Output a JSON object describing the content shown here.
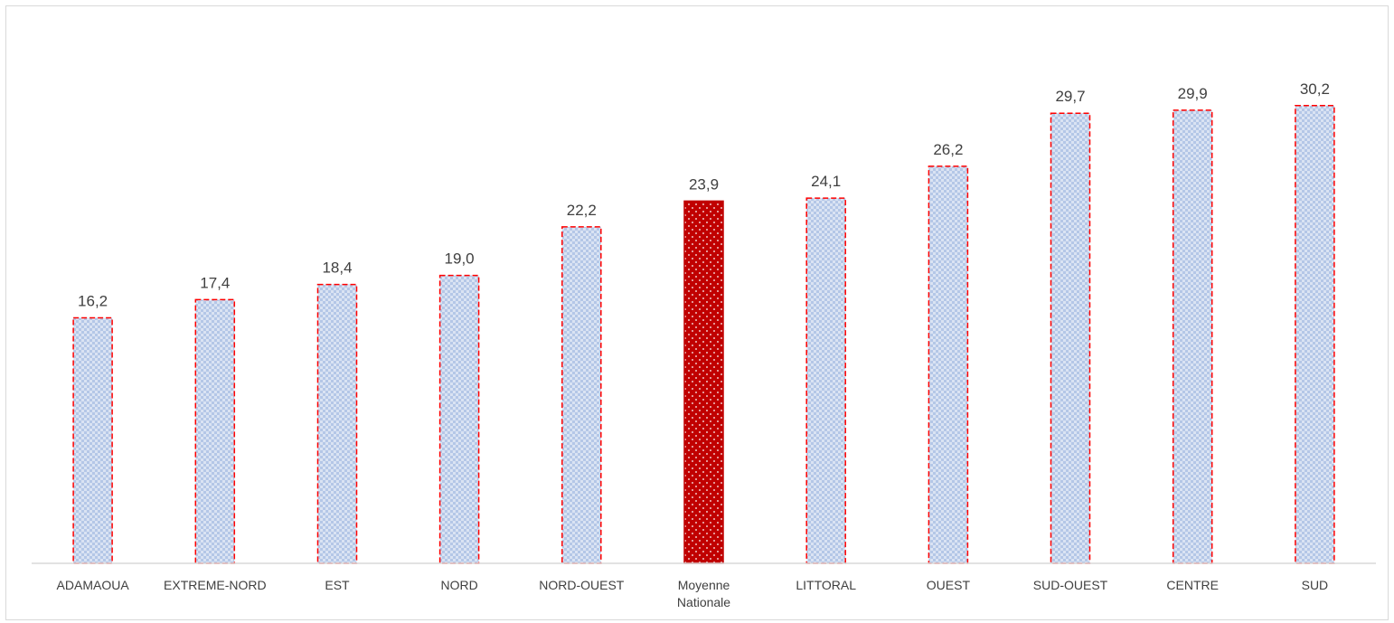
{
  "chart_data": {
    "type": "bar",
    "categories": [
      "ADAMAOUA",
      "EXTREME-NORD",
      "EST",
      "NORD",
      "NORD-OUEST",
      "Moyenne Nationale",
      "LITTORAL",
      "OUEST",
      "SUD-OUEST",
      "CENTRE",
      "SUD"
    ],
    "values": [
      16.2,
      17.4,
      18.4,
      19.0,
      22.2,
      23.9,
      24.1,
      26.2,
      29.7,
      29.9,
      30.2
    ],
    "value_labels": [
      "16,2",
      "17,4",
      "18,4",
      "19,0",
      "22,2",
      "23,9",
      "24,1",
      "26,2",
      "29,7",
      "29,9",
      "30,2"
    ],
    "highlight_category": "Moyenne Nationale",
    "ylim": [
      0,
      35
    ],
    "grid": false,
    "legend": "none",
    "title": "",
    "xlabel": "",
    "ylabel": "",
    "colors": {
      "bar_fill": "#b4c7e7",
      "bar_pattern": "#dae3f3",
      "bar_border": "#ff0000",
      "highlight_fill": "#c00000",
      "highlight_dots": "#ffffff",
      "axis": "#d9d9d9",
      "text": "#404040"
    }
  }
}
